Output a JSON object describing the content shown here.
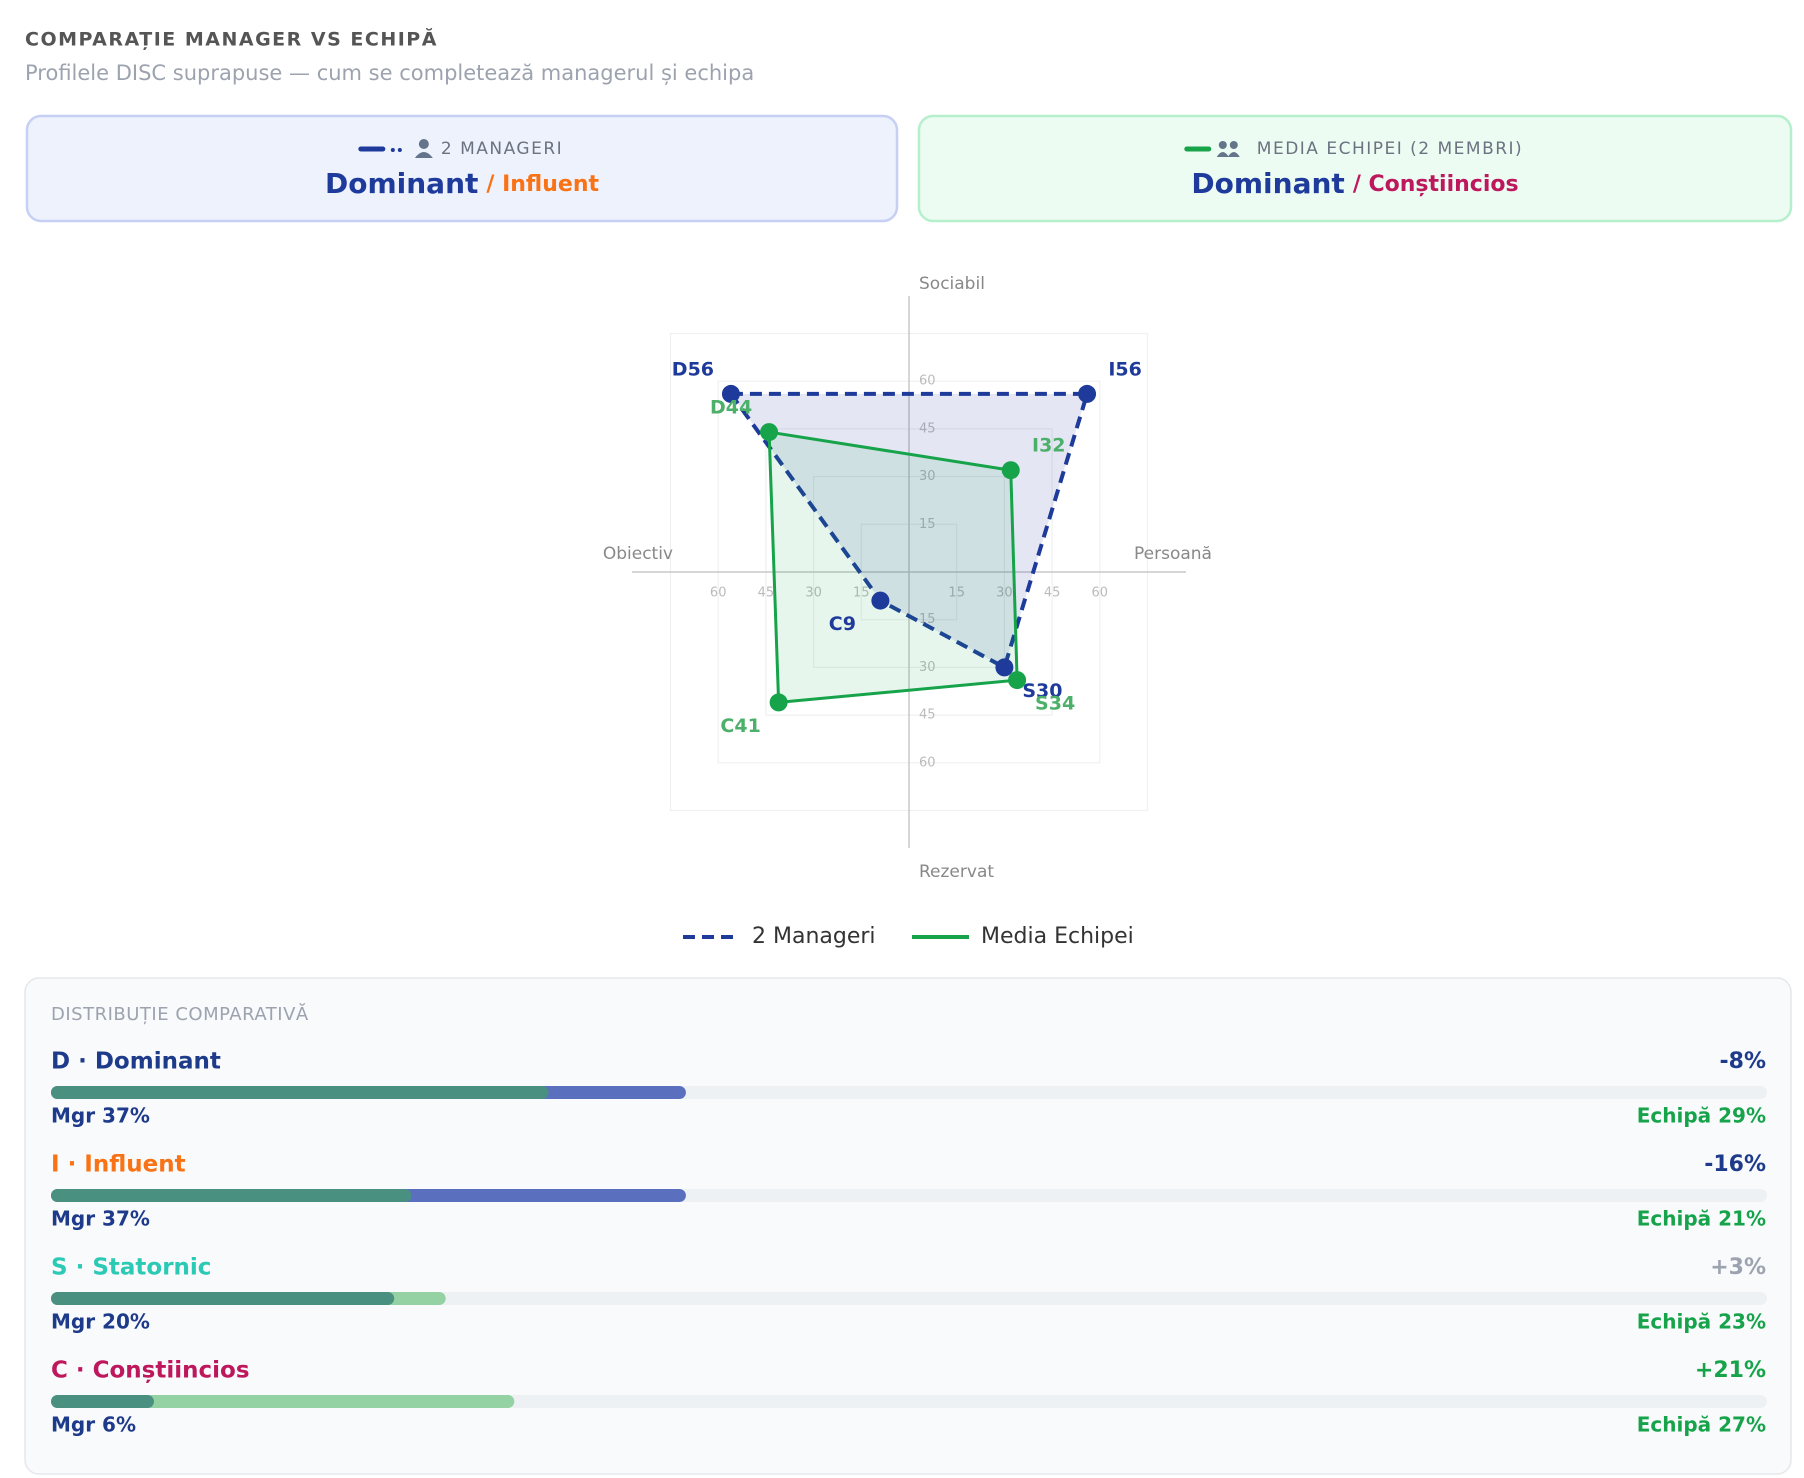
{
  "header": {
    "title": "COMPARAȚIE MANAGER VS ECHIPĂ",
    "subtitle": "Profilele DISC suprapuse — cum se completează managerul și echipa"
  },
  "cards": [
    {
      "label": "2 MANAGERI",
      "primary": "Dominant",
      "secondary": "/ Influent",
      "color": "#1e3a9a",
      "secondary_color": "#f97316"
    },
    {
      "label": "MEDIA ECHIPEI (2 MEMBRI)",
      "primary": "Dominant",
      "secondary": "/ Conștiincios",
      "color": "#16a34a",
      "secondary_color": "#be185d"
    }
  ],
  "chart_data": {
    "type": "quadrant-radar",
    "axis_labels": {
      "top": "Sociabil",
      "right": "Persoană",
      "bottom": "Rezervat",
      "left": "Obiectiv"
    },
    "lim": 75,
    "ticks": [
      15,
      30,
      45,
      60
    ],
    "series": [
      {
        "name": "2 Manageri",
        "color": "#1e3a9a",
        "dashed": true,
        "values": [
          56,
          56,
          30,
          9
        ],
        "value_labels": [
          "D56",
          "I56",
          "S30",
          "C9"
        ]
      },
      {
        "name": "Media Echipei",
        "color": "#16a34a",
        "dashed": false,
        "values": [
          44,
          32,
          34,
          41
        ],
        "value_labels": [
          "D44",
          "I32",
          "S34",
          "C41"
        ]
      }
    ]
  },
  "distribution": {
    "title": "DISTRIBUȚIE COMPARATIVĂ",
    "xlim": [
      0,
      100
    ],
    "rows": [
      {
        "label": "D · Dominant",
        "color": "#1e3a8a",
        "mgr": 37,
        "mgr_label": "Mgr 37%",
        "team": 29,
        "team_label": "Echipă 29%",
        "diff": -8,
        "diff_label": "-8%",
        "diff_color": "#1e3a8a"
      },
      {
        "label": "I · Influent",
        "color": "#f97316",
        "mgr": 37,
        "mgr_label": "Mgr 37%",
        "team": 21,
        "team_label": "Echipă 21%",
        "diff": -16,
        "diff_label": "-16%",
        "diff_color": "#1e3a8a"
      },
      {
        "label": "S · Statornic",
        "color": "#2cc9b4",
        "mgr": 20,
        "mgr_label": "Mgr 20%",
        "team": 23,
        "team_label": "Echipă 23%",
        "diff": 3,
        "diff_label": "+3%",
        "diff_color": "#9ca3af"
      },
      {
        "label": "C · Conștiincios",
        "color": "#be185d",
        "mgr": 6,
        "mgr_label": "Mgr 6%",
        "team": 27,
        "team_label": "Echipă 27%",
        "diff": 21,
        "diff_label": "+21%",
        "diff_color": "#16a34a"
      }
    ]
  }
}
